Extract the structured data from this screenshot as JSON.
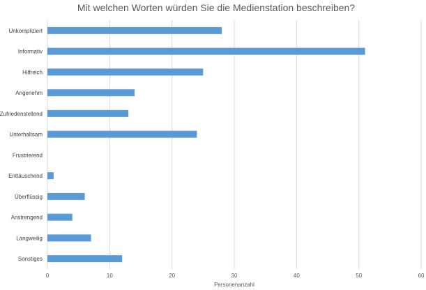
{
  "chart_data": {
    "type": "bar",
    "orientation": "horizontal",
    "title": "Mit welchen Worten würden Sie die Medienstation beschreiben?",
    "xlabel": "Personenanzahl",
    "ylabel": "",
    "xlim": [
      0,
      60
    ],
    "x_ticks": [
      "0",
      "10",
      "20",
      "30",
      "40",
      "50",
      "60"
    ],
    "grid": true,
    "legend": "none",
    "bar_color": "#5b9bd5",
    "categories": [
      "Unkompliziert",
      "Informativ",
      "Hilfreich",
      "Angenehm",
      "Zufriedenstellend",
      "Unterhaltsam",
      "Frustrierend",
      "Enttäuschend",
      "Überflüssig",
      "Anstrengend",
      "Langweilig",
      "Sonstiges"
    ],
    "values": [
      28,
      51,
      25,
      14,
      13,
      24,
      0,
      1,
      6,
      4,
      7,
      12
    ]
  }
}
